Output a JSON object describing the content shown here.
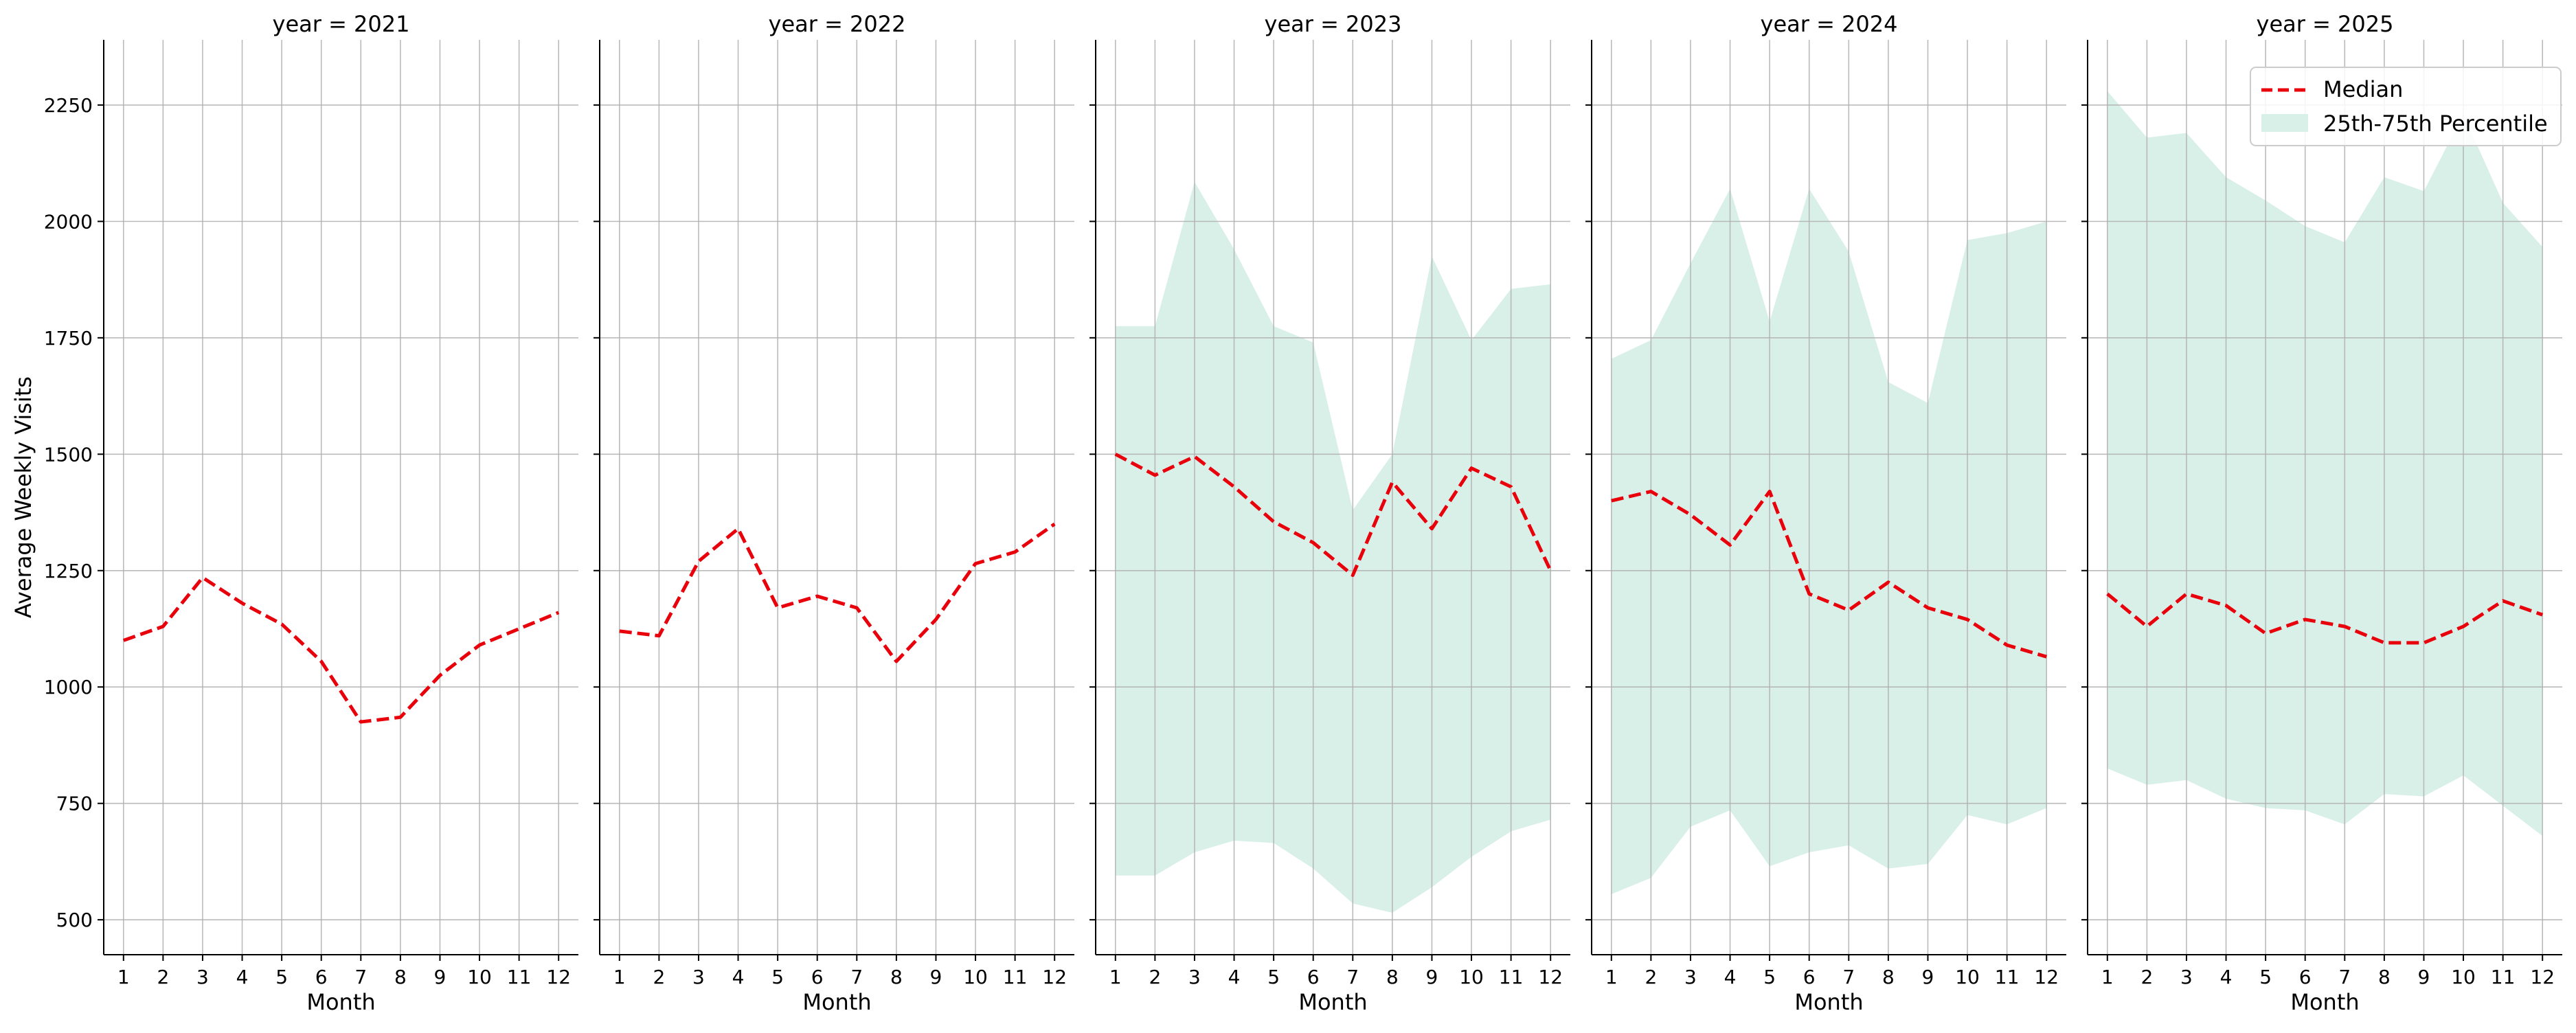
{
  "figure": {
    "ylabel": "Average Weekly Visits",
    "xlabel": "Month"
  },
  "legend": {
    "median_label": "Median",
    "band_label": "25th-75th Percentile",
    "placement": "top-right"
  },
  "colors": {
    "median": "#e8000b",
    "band": "#d9f0e9",
    "grid": "#b0b0b0",
    "axis": "#000000"
  },
  "chart_data": [
    {
      "type": "line",
      "title": "year = 2021",
      "xlabel": "Month",
      "ylabel": "Average Weekly Visits",
      "categories": [
        "1",
        "2",
        "3",
        "4",
        "5",
        "6",
        "7",
        "8",
        "9",
        "10",
        "11",
        "12"
      ],
      "xlim": [
        0.5,
        12.5
      ],
      "ylim": [
        425,
        2390
      ],
      "yticks": [
        500,
        750,
        1000,
        1250,
        1500,
        1750,
        2000,
        2250
      ],
      "grid": true,
      "series": [
        {
          "name": "Median",
          "style": "dashed",
          "x": [
            1,
            2,
            3,
            4,
            5,
            6,
            7,
            8,
            9,
            10,
            11,
            12
          ],
          "values": [
            1100,
            1130,
            1235,
            1180,
            1135,
            1055,
            925,
            935,
            1025,
            1090,
            1125,
            1160
          ]
        }
      ]
    },
    {
      "type": "line",
      "title": "year = 2022",
      "xlabel": "Month",
      "categories": [
        "1",
        "2",
        "3",
        "4",
        "5",
        "6",
        "7",
        "8",
        "9",
        "10",
        "11",
        "12"
      ],
      "xlim": [
        0.5,
        12.5
      ],
      "ylim": [
        425,
        2390
      ],
      "grid": true,
      "series": [
        {
          "name": "Median",
          "style": "dashed",
          "x": [
            1,
            2,
            3,
            4,
            5,
            6,
            7,
            8,
            9,
            10,
            11,
            12
          ],
          "values": [
            1120,
            1110,
            1270,
            1340,
            1170,
            1195,
            1170,
            1055,
            1145,
            1265,
            1290,
            1350
          ]
        }
      ]
    },
    {
      "type": "area",
      "title": "year = 2023",
      "xlabel": "Month",
      "categories": [
        "1",
        "2",
        "3",
        "4",
        "5",
        "6",
        "7",
        "8",
        "9",
        "10",
        "11",
        "12"
      ],
      "xlim": [
        0.5,
        12.5
      ],
      "ylim": [
        425,
        2390
      ],
      "grid": true,
      "series": [
        {
          "name": "Median",
          "style": "dashed",
          "x": [
            1,
            2,
            3,
            4,
            5,
            6,
            7,
            8,
            9,
            10,
            11,
            12
          ],
          "values": [
            1500,
            1455,
            1495,
            1430,
            1355,
            1310,
            1240,
            1440,
            1340,
            1470,
            1430,
            1250
          ]
        },
        {
          "name": "25th-75th Percentile",
          "style": "band",
          "x": [
            1,
            2,
            3,
            4,
            5,
            6,
            7,
            8,
            9,
            10,
            11,
            12
          ],
          "lower": [
            595,
            595,
            645,
            670,
            665,
            610,
            535,
            515,
            570,
            635,
            690,
            715
          ],
          "upper": [
            1775,
            1775,
            2085,
            1940,
            1775,
            1740,
            1380,
            1500,
            1925,
            1745,
            1855,
            1865
          ]
        }
      ]
    },
    {
      "type": "area",
      "title": "year = 2024",
      "xlabel": "Month",
      "categories": [
        "1",
        "2",
        "3",
        "4",
        "5",
        "6",
        "7",
        "8",
        "9",
        "10",
        "11",
        "12"
      ],
      "xlim": [
        0.5,
        12.5
      ],
      "ylim": [
        425,
        2390
      ],
      "grid": true,
      "series": [
        {
          "name": "Median",
          "style": "dashed",
          "x": [
            1,
            2,
            3,
            4,
            5,
            6,
            7,
            8,
            9,
            10,
            11,
            12
          ],
          "values": [
            1400,
            1420,
            1370,
            1305,
            1420,
            1200,
            1165,
            1225,
            1170,
            1145,
            1090,
            1065
          ]
        },
        {
          "name": "25th-75th Percentile",
          "style": "band",
          "x": [
            1,
            2,
            3,
            4,
            5,
            6,
            7,
            8,
            9,
            10,
            11,
            12
          ],
          "lower": [
            555,
            590,
            700,
            735,
            615,
            645,
            660,
            610,
            620,
            725,
            705,
            740
          ],
          "upper": [
            1705,
            1745,
            1910,
            2070,
            1785,
            2070,
            1935,
            1655,
            1610,
            1960,
            1975,
            2000
          ]
        }
      ]
    },
    {
      "type": "area",
      "title": "year = 2025",
      "xlabel": "Month",
      "categories": [
        "1",
        "2",
        "3",
        "4",
        "5",
        "6",
        "7",
        "8",
        "9",
        "10",
        "11",
        "12"
      ],
      "xlim": [
        0.5,
        12.5
      ],
      "ylim": [
        425,
        2390
      ],
      "grid": true,
      "legend": {
        "placement": "top-right"
      },
      "series": [
        {
          "name": "Median",
          "style": "dashed",
          "x": [
            1,
            2,
            3,
            4,
            5,
            6,
            7,
            8,
            9,
            10,
            11,
            12
          ],
          "values": [
            1200,
            1130,
            1200,
            1175,
            1115,
            1145,
            1130,
            1095,
            1095,
            1130,
            1185,
            1155
          ]
        },
        {
          "name": "25th-75th Percentile",
          "style": "band",
          "x": [
            1,
            2,
            3,
            4,
            5,
            6,
            7,
            8,
            9,
            10,
            11,
            12
          ],
          "lower": [
            825,
            790,
            800,
            760,
            740,
            735,
            705,
            770,
            765,
            810,
            745,
            680
          ],
          "upper": [
            2280,
            2180,
            2190,
            2095,
            2045,
            1990,
            1955,
            2095,
            2065,
            2230,
            2040,
            1945
          ]
        }
      ]
    }
  ]
}
